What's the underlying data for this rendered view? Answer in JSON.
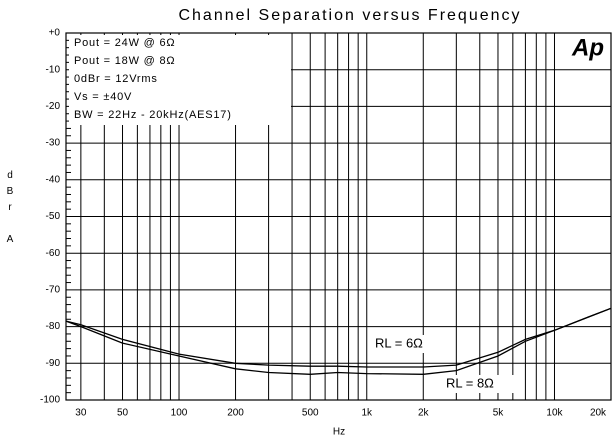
{
  "chart_data": {
    "type": "line",
    "title": "Channel Separation versus Frequency",
    "xlabel": "Hz",
    "ylabel": "dBr A",
    "xscale": "log",
    "xlim": [
      25,
      20000
    ],
    "xticks": [
      30,
      50,
      100,
      200,
      500,
      {
        "value": 1000,
        "label": "1k"
      },
      {
        "value": 2000,
        "label": "2k"
      },
      {
        "value": 5000,
        "label": "5k"
      },
      {
        "value": 10000,
        "label": "10k"
      },
      {
        "value": 20000,
        "label": "20k"
      }
    ],
    "xgrid": [
      30,
      40,
      50,
      60,
      70,
      80,
      90,
      100,
      200,
      300,
      400,
      500,
      600,
      700,
      800,
      900,
      1000,
      2000,
      3000,
      4000,
      5000,
      6000,
      7000,
      8000,
      9000,
      10000,
      20000
    ],
    "ylim": [
      -100,
      0
    ],
    "yticks": [
      {
        "value": 0,
        "label": "+0"
      },
      -10,
      -20,
      -30,
      -40,
      -50,
      -60,
      -70,
      -80,
      -90,
      -100
    ],
    "grid": true,
    "annotations": [
      "Pout = 24W @ 6Ω",
      "Pout = 18W @ 8Ω",
      "0dBr = 12Vrms",
      "Vs = ±40V",
      "BW = 22Hz - 20kHz(AES17)"
    ],
    "logo": "Ap",
    "x": [
      25,
      30,
      50,
      100,
      200,
      300,
      500,
      700,
      1000,
      2000,
      3000,
      5000,
      7000,
      10000,
      15000,
      20000
    ],
    "series": [
      {
        "name": "RL = 6Ω",
        "color": "#000000",
        "values": [
          -78.5,
          -79.5,
          -83.5,
          -87.5,
          -90,
          -90.5,
          -90.8,
          -90.8,
          -91,
          -91,
          -90.5,
          -87,
          -83.5,
          -81,
          -77.5,
          -75
        ]
      },
      {
        "name": "RL = 8Ω",
        "color": "#000000",
        "values": [
          -78.5,
          -80,
          -84.5,
          -88,
          -91.5,
          -92.5,
          -93,
          -92.5,
          -92.8,
          -93,
          -92,
          -88,
          -84,
          -81,
          -77.5,
          -75
        ]
      }
    ]
  }
}
